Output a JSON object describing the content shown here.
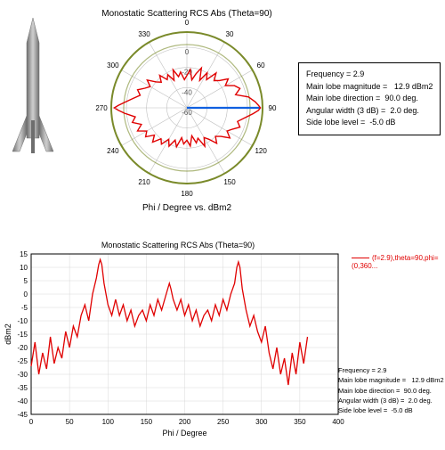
{
  "polar": {
    "title": "Monostatic Scattering RCS Abs (Theta=90)",
    "subtitle": "Phi / Degree vs. dBm2",
    "type": "polar-line",
    "angle_labels": [
      0,
      30,
      60,
      90,
      120,
      150,
      180,
      210,
      240,
      270,
      300,
      330
    ],
    "radial_ticks": [
      -60,
      -40,
      -20,
      0
    ],
    "radial_min": -60,
    "radial_max": 15,
    "grid_color": "#bfbfbf",
    "outer_ring_color": "#7a8a2a",
    "line_color": "#e00000",
    "marker_line_color": "#1060e0",
    "marker_angle": 90,
    "marker_value": 12.9,
    "background": "#ffffff",
    "title_fontsize": 10,
    "tick_fontsize": 8,
    "data": [
      {
        "phi": 0,
        "v": -28
      },
      {
        "phi": 5,
        "v": -22
      },
      {
        "phi": 10,
        "v": -32
      },
      {
        "phi": 15,
        "v": -25
      },
      {
        "phi": 20,
        "v": -18
      },
      {
        "phi": 25,
        "v": -30
      },
      {
        "phi": 30,
        "v": -20
      },
      {
        "phi": 35,
        "v": -26
      },
      {
        "phi": 40,
        "v": -15
      },
      {
        "phi": 45,
        "v": -22
      },
      {
        "phi": 50,
        "v": -18
      },
      {
        "phi": 55,
        "v": -10
      },
      {
        "phi": 60,
        "v": -16
      },
      {
        "phi": 65,
        "v": -8
      },
      {
        "phi": 70,
        "v": -4
      },
      {
        "phi": 75,
        "v": -10
      },
      {
        "phi": 80,
        "v": 2
      },
      {
        "phi": 85,
        "v": 8
      },
      {
        "phi": 88,
        "v": 11
      },
      {
        "phi": 90,
        "v": 12.9
      },
      {
        "phi": 92,
        "v": 11
      },
      {
        "phi": 95,
        "v": 6
      },
      {
        "phi": 100,
        "v": -2
      },
      {
        "phi": 105,
        "v": -8
      },
      {
        "phi": 110,
        "v": -4
      },
      {
        "phi": 115,
        "v": -10
      },
      {
        "phi": 120,
        "v": -14
      },
      {
        "phi": 125,
        "v": -8
      },
      {
        "phi": 130,
        "v": -16
      },
      {
        "phi": 135,
        "v": -20
      },
      {
        "phi": 140,
        "v": -14
      },
      {
        "phi": 145,
        "v": -22
      },
      {
        "phi": 150,
        "v": -26
      },
      {
        "phi": 155,
        "v": -18
      },
      {
        "phi": 160,
        "v": -28
      },
      {
        "phi": 165,
        "v": -24
      },
      {
        "phi": 170,
        "v": -32
      },
      {
        "phi": 175,
        "v": -22
      },
      {
        "phi": 180,
        "v": -28
      },
      {
        "phi": 185,
        "v": -24
      },
      {
        "phi": 190,
        "v": -30
      },
      {
        "phi": 195,
        "v": -20
      },
      {
        "phi": 200,
        "v": -26
      },
      {
        "phi": 205,
        "v": -18
      },
      {
        "phi": 210,
        "v": -24
      },
      {
        "phi": 215,
        "v": -16
      },
      {
        "phi": 220,
        "v": -20
      },
      {
        "phi": 225,
        "v": -12
      },
      {
        "phi": 230,
        "v": -18
      },
      {
        "phi": 235,
        "v": -10
      },
      {
        "phi": 240,
        "v": -14
      },
      {
        "phi": 245,
        "v": -6
      },
      {
        "phi": 250,
        "v": -12
      },
      {
        "phi": 255,
        "v": -4
      },
      {
        "phi": 260,
        "v": -8
      },
      {
        "phi": 265,
        "v": 2
      },
      {
        "phi": 268,
        "v": 8
      },
      {
        "phi": 270,
        "v": 12
      },
      {
        "phi": 272,
        "v": 8
      },
      {
        "phi": 275,
        "v": 2
      },
      {
        "phi": 280,
        "v": -6
      },
      {
        "phi": 285,
        "v": -12
      },
      {
        "phi": 290,
        "v": -8
      },
      {
        "phi": 295,
        "v": -14
      },
      {
        "phi": 300,
        "v": -18
      },
      {
        "phi": 305,
        "v": -12
      },
      {
        "phi": 310,
        "v": -20
      },
      {
        "phi": 315,
        "v": -24
      },
      {
        "phi": 320,
        "v": -18
      },
      {
        "phi": 325,
        "v": -26
      },
      {
        "phi": 330,
        "v": -22
      },
      {
        "phi": 335,
        "v": -30
      },
      {
        "phi": 340,
        "v": -20
      },
      {
        "phi": 345,
        "v": -28
      },
      {
        "phi": 350,
        "v": -24
      },
      {
        "phi": 355,
        "v": -32
      },
      {
        "phi": 360,
        "v": -28
      }
    ]
  },
  "info": {
    "freq_label": "Frequency = ",
    "freq_value": "2.9",
    "mag_label": "Main lobe magnitude = ",
    "mag_value": "12.9 dBm2",
    "dir_label": "Main lobe direction = ",
    "dir_value": "90.0 deg.",
    "width_label": "Angular width (3 dB) = ",
    "width_value": "2.0 deg.",
    "side_label": "Side lobe level = ",
    "side_value": "-5.0 dB"
  },
  "cartesian": {
    "title": "Monostatic Scattering RCS Abs (Theta=90)",
    "type": "line",
    "xlabel": "Phi / Degree",
    "ylabel": "dBm2",
    "xlim": [
      0,
      400
    ],
    "ylim": [
      -45,
      15
    ],
    "xtick_step": 50,
    "ytick_step": 5,
    "line_color": "#e00000",
    "grid_color": "#d8d8d8",
    "axis_color": "#000000",
    "background": "#ffffff",
    "legend_text": "(f=2.9),theta=90,phi=(0,360...",
    "title_fontsize": 9,
    "label_fontsize": 9,
    "tick_fontsize": 8,
    "data": [
      {
        "x": 0,
        "y": -27
      },
      {
        "x": 5,
        "y": -18
      },
      {
        "x": 10,
        "y": -30
      },
      {
        "x": 15,
        "y": -22
      },
      {
        "x": 20,
        "y": -28
      },
      {
        "x": 25,
        "y": -16
      },
      {
        "x": 30,
        "y": -26
      },
      {
        "x": 35,
        "y": -20
      },
      {
        "x": 40,
        "y": -24
      },
      {
        "x": 45,
        "y": -14
      },
      {
        "x": 50,
        "y": -20
      },
      {
        "x": 55,
        "y": -12
      },
      {
        "x": 60,
        "y": -16
      },
      {
        "x": 65,
        "y": -8
      },
      {
        "x": 70,
        "y": -4
      },
      {
        "x": 75,
        "y": -10
      },
      {
        "x": 80,
        "y": 0
      },
      {
        "x": 85,
        "y": 6
      },
      {
        "x": 88,
        "y": 11
      },
      {
        "x": 90,
        "y": 12.9
      },
      {
        "x": 92,
        "y": 11
      },
      {
        "x": 95,
        "y": 4
      },
      {
        "x": 100,
        "y": -4
      },
      {
        "x": 105,
        "y": -8
      },
      {
        "x": 110,
        "y": -2
      },
      {
        "x": 115,
        "y": -8
      },
      {
        "x": 120,
        "y": -4
      },
      {
        "x": 125,
        "y": -10
      },
      {
        "x": 130,
        "y": -6
      },
      {
        "x": 135,
        "y": -12
      },
      {
        "x": 140,
        "y": -8
      },
      {
        "x": 145,
        "y": -6
      },
      {
        "x": 150,
        "y": -10
      },
      {
        "x": 155,
        "y": -4
      },
      {
        "x": 160,
        "y": -8
      },
      {
        "x": 165,
        "y": -2
      },
      {
        "x": 170,
        "y": -6
      },
      {
        "x": 175,
        "y": -1
      },
      {
        "x": 178,
        "y": 2
      },
      {
        "x": 180,
        "y": 4
      },
      {
        "x": 182,
        "y": 2
      },
      {
        "x": 185,
        "y": -2
      },
      {
        "x": 190,
        "y": -6
      },
      {
        "x": 195,
        "y": -2
      },
      {
        "x": 200,
        "y": -8
      },
      {
        "x": 205,
        "y": -4
      },
      {
        "x": 210,
        "y": -10
      },
      {
        "x": 215,
        "y": -6
      },
      {
        "x": 220,
        "y": -12
      },
      {
        "x": 225,
        "y": -8
      },
      {
        "x": 230,
        "y": -6
      },
      {
        "x": 235,
        "y": -10
      },
      {
        "x": 240,
        "y": -4
      },
      {
        "x": 245,
        "y": -8
      },
      {
        "x": 250,
        "y": -2
      },
      {
        "x": 255,
        "y": -6
      },
      {
        "x": 260,
        "y": 0
      },
      {
        "x": 265,
        "y": 4
      },
      {
        "x": 268,
        "y": 10
      },
      {
        "x": 270,
        "y": 12
      },
      {
        "x": 272,
        "y": 10
      },
      {
        "x": 275,
        "y": 2
      },
      {
        "x": 280,
        "y": -6
      },
      {
        "x": 285,
        "y": -12
      },
      {
        "x": 290,
        "y": -8
      },
      {
        "x": 295,
        "y": -14
      },
      {
        "x": 300,
        "y": -18
      },
      {
        "x": 305,
        "y": -12
      },
      {
        "x": 310,
        "y": -22
      },
      {
        "x": 315,
        "y": -28
      },
      {
        "x": 320,
        "y": -20
      },
      {
        "x": 325,
        "y": -30
      },
      {
        "x": 330,
        "y": -24
      },
      {
        "x": 335,
        "y": -34
      },
      {
        "x": 340,
        "y": -22
      },
      {
        "x": 345,
        "y": -30
      },
      {
        "x": 350,
        "y": -18
      },
      {
        "x": 355,
        "y": -26
      },
      {
        "x": 360,
        "y": -16
      }
    ]
  },
  "missile": {
    "body_color": "#9a9a9a",
    "highlight_color": "#c8c8c8",
    "shadow_color": "#6e6e6e"
  }
}
